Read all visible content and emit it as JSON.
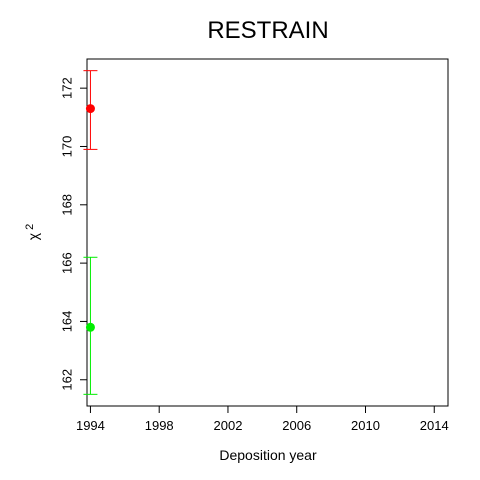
{
  "chart_data": {
    "type": "scatter",
    "title": "RESTRAIN",
    "xlabel": "Deposition year",
    "ylabel_symbol": "χ",
    "ylabel_superscript": "2",
    "xlim": [
      1993.8,
      2014.8
    ],
    "ylim": [
      161.1,
      173.0
    ],
    "x_ticks": [
      1994,
      1998,
      2002,
      2006,
      2010,
      2014
    ],
    "y_ticks": [
      162,
      164,
      166,
      168,
      170,
      172
    ],
    "grid": false,
    "points": [
      {
        "x": 1994,
        "y": 171.3,
        "lower": 169.9,
        "upper": 172.6,
        "color": "#ff0000"
      },
      {
        "x": 1994,
        "y": 163.8,
        "lower": 161.5,
        "upper": 166.2,
        "color": "#00ee00"
      }
    ]
  }
}
